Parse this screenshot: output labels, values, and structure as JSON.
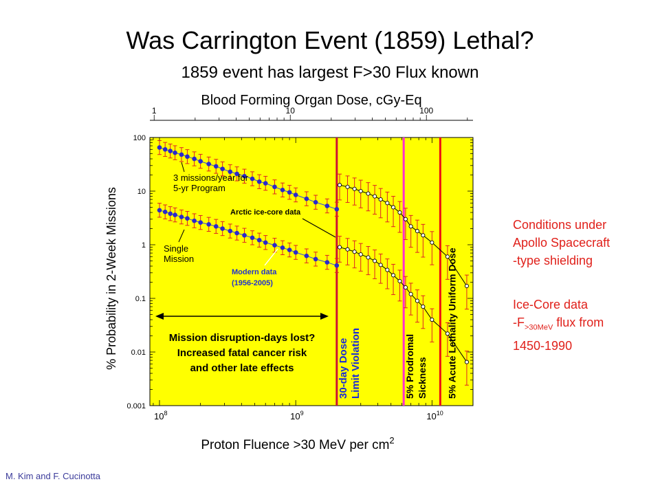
{
  "slide": {
    "title": "Was Carrington Event (1859) Lethal?",
    "subtitle": "1859 event has largest F>30 Flux known",
    "credit": "M. Kim and F. Cucinotta",
    "side_note_1": [
      "Conditions under",
      "Apollo Spacecraft",
      "-type shielding"
    ],
    "side_note_2": {
      "line1": "Ice-Core data",
      "line2_prefix": "-F",
      "line2_sub": ">30MeV",
      "line2_suffix": " flux from",
      "line3": "1450-1990"
    }
  },
  "chart_data": {
    "type": "scatter",
    "xlabel": "Proton Fluence >30 MeV  per cm",
    "xlabel_sup": "2",
    "ylabel": "% Probability in 2-Week Missions",
    "top_axis_label": "Blood Forming Organ Dose, cGy-Eq",
    "x_scale": "log",
    "y_scale": "log",
    "xlim": [
      85000000.0,
      20000000000.0
    ],
    "ylim": [
      0.001,
      100
    ],
    "x_ticks": [
      {
        "v": 100000000.0,
        "b": "10",
        "e": "8"
      },
      {
        "v": 1000000000.0,
        "b": "10",
        "e": "9"
      },
      {
        "v": 10000000000.0,
        "b": "10",
        "e": "10"
      }
    ],
    "y_ticks": [
      {
        "v": 100,
        "t": "100"
      },
      {
        "v": 10,
        "t": "10"
      },
      {
        "v": 1,
        "t": "1"
      },
      {
        "v": 0.1,
        "t": "0.1"
      },
      {
        "v": 0.01,
        "t": "0.01"
      },
      {
        "v": 0.001,
        "t": "0.001"
      }
    ],
    "top_ticks": [
      {
        "v": 1,
        "t": "1"
      },
      {
        "v": 10,
        "t": "10"
      },
      {
        "v": 100,
        "t": "100"
      }
    ],
    "top_range": [
      0.93,
      220
    ],
    "background": "#ffff00",
    "vertical_lines": [
      {
        "x": 2000000000.0,
        "color": "#cc1133",
        "label": "30-day Dose\nLimit Violation",
        "label_color": "#1a2bd6"
      },
      {
        "x": 6200000000.0,
        "color": "#ff2ed0",
        "label": "5% Prodromal\nSickness",
        "label_color": "#000000"
      },
      {
        "x": 11500000000.0,
        "color": "#ee1111",
        "label": "5% Acute Lethality Uniform Dose",
        "label_color": "#000000"
      }
    ],
    "annotations": {
      "three_missions": "3 missions/year for\n5-yr Program",
      "single_mission": "Single\nMission",
      "arctic": "Arctic ice-core data",
      "modern": "Modern data\n(1956-2005)",
      "disruption": "Mission disruption-days lost?\nIncreased fatal cancer risk\nand other late effects"
    },
    "series": [
      {
        "name": "3 missions/year for 5-yr Program - Modern data",
        "color": "#2a2acc",
        "x": [
          100000000.0,
          110000000.0,
          120000000.0,
          130000000.0,
          145000000.0,
          160000000.0,
          180000000.0,
          200000000.0,
          230000000.0,
          260000000.0,
          290000000.0,
          330000000.0,
          370000000.0,
          420000000.0,
          480000000.0,
          540000000.0,
          600000000.0,
          700000000.0,
          800000000.0,
          900000000.0,
          1000000000.0,
          1200000000.0,
          1400000000.0,
          1700000000.0,
          2000000000.0
        ],
        "y": [
          65,
          60,
          56,
          52,
          48,
          44,
          40,
          36,
          32,
          29,
          26,
          23,
          21,
          19,
          17,
          15,
          14,
          12,
          10.5,
          9.5,
          8.5,
          7.2,
          6.2,
          5.3,
          4.6
        ]
      },
      {
        "name": "Single Mission - Modern data",
        "color": "#2a2acc",
        "x": [
          100000000.0,
          110000000.0,
          120000000.0,
          130000000.0,
          145000000.0,
          160000000.0,
          180000000.0,
          200000000.0,
          230000000.0,
          260000000.0,
          290000000.0,
          330000000.0,
          370000000.0,
          420000000.0,
          480000000.0,
          540000000.0,
          600000000.0,
          700000000.0,
          800000000.0,
          900000000.0,
          1000000000.0,
          1200000000.0,
          1400000000.0,
          1700000000.0,
          2000000000.0
        ],
        "y": [
          4.4,
          4.1,
          3.8,
          3.6,
          3.3,
          3.1,
          2.8,
          2.6,
          2.4,
          2.2,
          2.0,
          1.8,
          1.65,
          1.5,
          1.35,
          1.22,
          1.1,
          0.98,
          0.88,
          0.8,
          0.72,
          0.62,
          0.54,
          0.47,
          0.41
        ]
      },
      {
        "name": "3 missions/year for 5-yr Program - Arctic ice-core data",
        "color": "#000000",
        "x": [
          2100000000.0,
          2400000000.0,
          2700000000.0,
          3000000000.0,
          3400000000.0,
          3800000000.0,
          4200000000.0,
          4700000000.0,
          5200000000.0,
          5800000000.0,
          6400000000.0,
          7000000000.0,
          7800000000.0,
          8600000000.0,
          10000000000.0,
          13000000000.0,
          18000000000.0
        ],
        "y": [
          13,
          12,
          11,
          10,
          9,
          8,
          7,
          6,
          5,
          4,
          3,
          2.2,
          1.8,
          1.5,
          1.1,
          0.6,
          0.17
        ]
      },
      {
        "name": "Single Mission - Arctic ice-core data",
        "color": "#000000",
        "x": [
          2100000000.0,
          2400000000.0,
          2700000000.0,
          3000000000.0,
          3400000000.0,
          3800000000.0,
          4200000000.0,
          4700000000.0,
          5200000000.0,
          5800000000.0,
          6400000000.0,
          7000000000.0,
          7800000000.0,
          8600000000.0,
          10000000000.0,
          13000000000.0,
          18000000000.0
        ],
        "y": [
          0.9,
          0.82,
          0.74,
          0.66,
          0.58,
          0.5,
          0.42,
          0.34,
          0.27,
          0.21,
          0.16,
          0.12,
          0.09,
          0.07,
          0.04,
          0.022,
          0.0065
        ]
      }
    ]
  }
}
